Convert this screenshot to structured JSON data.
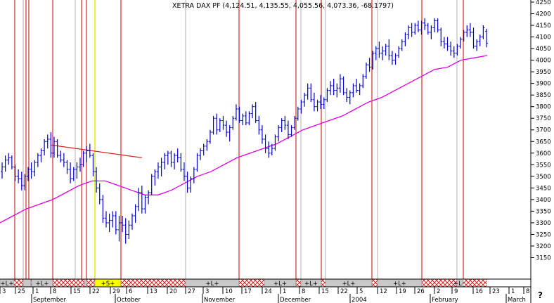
{
  "chart_data": {
    "type": "ohlc",
    "title": "XETRA DAX PF (4,124.51, 4,135.55, 4,055.56, 4,073.36, -68.1797)",
    "ylim": [
      3100,
      4250
    ],
    "yticks": [
      3150,
      3200,
      3250,
      3300,
      3350,
      3400,
      3450,
      3500,
      3550,
      3600,
      3650,
      3700,
      3750,
      3800,
      3850,
      3900,
      3950,
      4000,
      4050,
      4100,
      4150,
      4200,
      4250
    ],
    "colors": {
      "bars": "#0000cc",
      "moving_average": "#e000e0",
      "trendline": "#dd2222",
      "red_lines": "#cc0000",
      "gray_lines": "#b0b0b0",
      "yellow_line": "#e8e800",
      "band_gray": "#c8c8c8",
      "band_hatch": "#dd0000",
      "band_yellow": "#ffff00"
    },
    "day_ticks": [
      "3",
      "25",
      "1",
      "8",
      "15",
      "22",
      "29",
      "6",
      "13",
      "20",
      "27",
      "3",
      "10",
      "17",
      "24",
      "1",
      "8",
      "15",
      "22",
      "5",
      "12",
      "19",
      "26",
      "2",
      "9",
      "16",
      "23",
      "1",
      "8"
    ],
    "month_labels": [
      "September",
      "October",
      "November",
      "December",
      "2004",
      "February",
      "March"
    ],
    "band_labels": [
      "+L+",
      "+L+",
      "+S+",
      "+L+",
      "+L+",
      "+L+",
      "+L+",
      "+L+",
      "+L+",
      "+L+"
    ],
    "corner_symbol": "?",
    "series": [
      {
        "name": "XETRA DAX PF",
        "values": [
          [
            3520,
            3560,
            3490,
            3540
          ],
          [
            3540,
            3590,
            3520,
            3570
          ],
          [
            3570,
            3600,
            3550,
            3580
          ],
          [
            3580,
            3590,
            3530,
            3540
          ],
          [
            3540,
            3550,
            3480,
            3500
          ],
          [
            3500,
            3530,
            3470,
            3490
          ],
          [
            3490,
            3520,
            3440,
            3460
          ],
          [
            3460,
            3510,
            3440,
            3500
          ],
          [
            3500,
            3540,
            3480,
            3530
          ],
          [
            3530,
            3560,
            3490,
            3520
          ],
          [
            3520,
            3570,
            3500,
            3560
          ],
          [
            3560,
            3600,
            3540,
            3590
          ],
          [
            3590,
            3620,
            3560,
            3610
          ],
          [
            3610,
            3660,
            3590,
            3650
          ],
          [
            3650,
            3680,
            3620,
            3660
          ],
          [
            3660,
            3690,
            3580,
            3600
          ],
          [
            3600,
            3670,
            3580,
            3650
          ],
          [
            3650,
            3660,
            3580,
            3590
          ],
          [
            3590,
            3610,
            3560,
            3570
          ],
          [
            3570,
            3600,
            3540,
            3560
          ],
          [
            3560,
            3570,
            3510,
            3530
          ],
          [
            3530,
            3560,
            3470,
            3490
          ],
          [
            3490,
            3540,
            3480,
            3530
          ],
          [
            3530,
            3560,
            3490,
            3540
          ],
          [
            3540,
            3580,
            3520,
            3550
          ],
          [
            3550,
            3610,
            3540,
            3600
          ],
          [
            3600,
            3630,
            3560,
            3610
          ],
          [
            3610,
            3640,
            3580,
            3590
          ],
          [
            3590,
            3600,
            3500,
            3520
          ],
          [
            3520,
            3540,
            3430,
            3450
          ],
          [
            3450,
            3470,
            3380,
            3400
          ],
          [
            3400,
            3420,
            3300,
            3320
          ],
          [
            3320,
            3350,
            3280,
            3300
          ],
          [
            3300,
            3340,
            3260,
            3310
          ],
          [
            3310,
            3350,
            3280,
            3330
          ],
          [
            3330,
            3350,
            3250,
            3270
          ],
          [
            3270,
            3330,
            3220,
            3300
          ],
          [
            3300,
            3330,
            3260,
            3290
          ],
          [
            3290,
            3320,
            3210,
            3250
          ],
          [
            3250,
            3310,
            3230,
            3290
          ],
          [
            3290,
            3340,
            3270,
            3330
          ],
          [
            3330,
            3380,
            3300,
            3370
          ],
          [
            3370,
            3450,
            3350,
            3430
          ],
          [
            3430,
            3460,
            3340,
            3360
          ],
          [
            3360,
            3420,
            3340,
            3410
          ],
          [
            3410,
            3440,
            3380,
            3430
          ],
          [
            3430,
            3510,
            3420,
            3500
          ],
          [
            3500,
            3530,
            3460,
            3520
          ],
          [
            3520,
            3560,
            3490,
            3540
          ],
          [
            3540,
            3580,
            3500,
            3560
          ],
          [
            3560,
            3600,
            3530,
            3590
          ],
          [
            3590,
            3610,
            3550,
            3600
          ],
          [
            3600,
            3610,
            3540,
            3560
          ],
          [
            3560,
            3600,
            3530,
            3590
          ],
          [
            3590,
            3620,
            3560,
            3580
          ],
          [
            3580,
            3600,
            3520,
            3530
          ],
          [
            3530,
            3560,
            3480,
            3500
          ],
          [
            3500,
            3520,
            3430,
            3450
          ],
          [
            3450,
            3500,
            3430,
            3490
          ],
          [
            3490,
            3540,
            3470,
            3530
          ],
          [
            3530,
            3600,
            3520,
            3590
          ],
          [
            3590,
            3620,
            3570,
            3610
          ],
          [
            3610,
            3640,
            3590,
            3630
          ],
          [
            3630,
            3660,
            3610,
            3650
          ],
          [
            3650,
            3700,
            3640,
            3690
          ],
          [
            3690,
            3760,
            3680,
            3750
          ],
          [
            3750,
            3770,
            3680,
            3700
          ],
          [
            3700,
            3750,
            3690,
            3740
          ],
          [
            3740,
            3760,
            3700,
            3720
          ],
          [
            3720,
            3740,
            3670,
            3690
          ],
          [
            3690,
            3720,
            3650,
            3710
          ],
          [
            3710,
            3760,
            3700,
            3750
          ],
          [
            3750,
            3810,
            3740,
            3790
          ],
          [
            3790,
            3800,
            3730,
            3740
          ],
          [
            3740,
            3770,
            3720,
            3760
          ],
          [
            3760,
            3780,
            3720,
            3730
          ],
          [
            3730,
            3780,
            3720,
            3770
          ],
          [
            3770,
            3810,
            3750,
            3800
          ],
          [
            3800,
            3820,
            3730,
            3740
          ],
          [
            3740,
            3760,
            3680,
            3700
          ],
          [
            3700,
            3720,
            3640,
            3660
          ],
          [
            3660,
            3680,
            3600,
            3620
          ],
          [
            3620,
            3650,
            3580,
            3600
          ],
          [
            3600,
            3640,
            3590,
            3620
          ],
          [
            3620,
            3680,
            3610,
            3670
          ],
          [
            3670,
            3720,
            3650,
            3710
          ],
          [
            3710,
            3750,
            3690,
            3740
          ],
          [
            3740,
            3760,
            3700,
            3720
          ],
          [
            3720,
            3740,
            3660,
            3680
          ],
          [
            3680,
            3720,
            3670,
            3710
          ],
          [
            3710,
            3760,
            3700,
            3750
          ],
          [
            3750,
            3800,
            3740,
            3790
          ],
          [
            3790,
            3830,
            3770,
            3820
          ],
          [
            3820,
            3860,
            3800,
            3850
          ],
          [
            3850,
            3900,
            3830,
            3880
          ],
          [
            3880,
            3900,
            3820,
            3830
          ],
          [
            3830,
            3860,
            3780,
            3800
          ],
          [
            3800,
            3830,
            3780,
            3820
          ],
          [
            3820,
            3850,
            3790,
            3810
          ],
          [
            3810,
            3840,
            3790,
            3830
          ],
          [
            3830,
            3880,
            3820,
            3870
          ],
          [
            3870,
            3910,
            3850,
            3890
          ],
          [
            3890,
            3920,
            3850,
            3870
          ],
          [
            3870,
            3900,
            3840,
            3880
          ],
          [
            3880,
            3940,
            3860,
            3920
          ],
          [
            3920,
            3930,
            3850,
            3860
          ],
          [
            3860,
            3880,
            3820,
            3840
          ],
          [
            3840,
            3870,
            3810,
            3860
          ],
          [
            3860,
            3900,
            3840,
            3890
          ],
          [
            3890,
            3920,
            3860,
            3870
          ],
          [
            3870,
            3900,
            3850,
            3890
          ],
          [
            3890,
            3940,
            3880,
            3930
          ],
          [
            3930,
            3990,
            3920,
            3980
          ],
          [
            3980,
            4010,
            3950,
            3970
          ],
          [
            3970,
            4040,
            3960,
            4030
          ],
          [
            4030,
            4060,
            4000,
            4050
          ],
          [
            4050,
            4080,
            4010,
            4030
          ],
          [
            4030,
            4060,
            4000,
            4040
          ],
          [
            4040,
            4070,
            4020,
            4060
          ],
          [
            4060,
            4090,
            4000,
            4020
          ],
          [
            4020,
            4040,
            3980,
            4000
          ],
          [
            4000,
            4030,
            3980,
            4020
          ],
          [
            4020,
            4060,
            4010,
            4050
          ],
          [
            4050,
            4090,
            4040,
            4080
          ],
          [
            4080,
            4120,
            4060,
            4110
          ],
          [
            4110,
            4150,
            4090,
            4140
          ],
          [
            4140,
            4160,
            4100,
            4120
          ],
          [
            4120,
            4160,
            4110,
            4150
          ],
          [
            4150,
            4170,
            4120,
            4130
          ],
          [
            4130,
            4170,
            4110,
            4160
          ],
          [
            4160,
            4180,
            4130,
            4150
          ],
          [
            4150,
            4160,
            4110,
            4120
          ],
          [
            4120,
            4150,
            4090,
            4140
          ],
          [
            4140,
            4180,
            4120,
            4170
          ],
          [
            4170,
            4180,
            4120,
            4130
          ],
          [
            4130,
            4140,
            4060,
            4080
          ],
          [
            4080,
            4100,
            4050,
            4070
          ],
          [
            4070,
            4100,
            4040,
            4060
          ],
          [
            4060,
            4080,
            4020,
            4040
          ],
          [
            4040,
            4060,
            4010,
            4030
          ],
          [
            4030,
            4070,
            4020,
            4060
          ],
          [
            4060,
            4100,
            4050,
            4090
          ],
          [
            4090,
            4130,
            4080,
            4120
          ],
          [
            4120,
            4150,
            4100,
            4130
          ],
          [
            4130,
            4160,
            4100,
            4120
          ],
          [
            4120,
            4140,
            4050,
            4060
          ],
          [
            4060,
            4090,
            4040,
            4080
          ],
          [
            4080,
            4110,
            4060,
            4100
          ],
          [
            4100,
            4150,
            4090,
            4140
          ],
          [
            4124.51,
            4135.55,
            4055.56,
            4073.36
          ]
        ]
      },
      {
        "name": "Moving Average",
        "values": [
          3300,
          3330,
          3360,
          3380,
          3400,
          3430,
          3460,
          3480,
          3480,
          3460,
          3440,
          3420,
          3420,
          3440,
          3470,
          3500,
          3520,
          3550,
          3580,
          3600,
          3620,
          3640,
          3670,
          3700,
          3720,
          3740,
          3760,
          3790,
          3820,
          3840,
          3870,
          3900,
          3930,
          3960,
          3970,
          4000,
          4010,
          4020
        ]
      }
    ],
    "trendline": {
      "from": [
        15,
        3635
      ],
      "to": [
        43,
        3580
      ]
    }
  }
}
